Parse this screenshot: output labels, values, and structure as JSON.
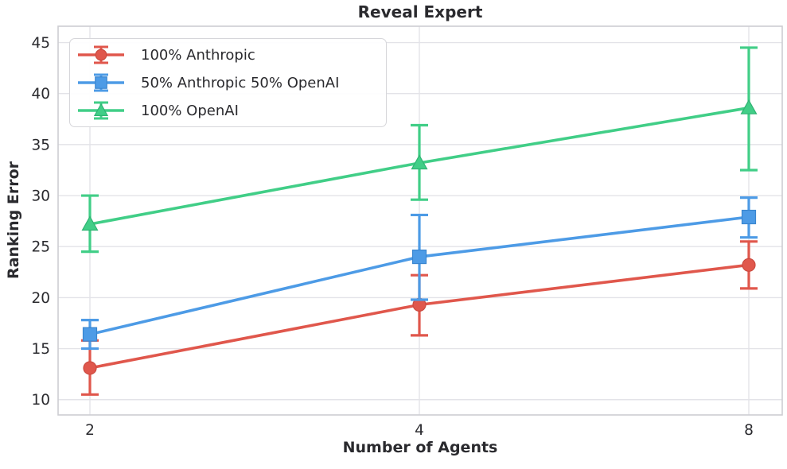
{
  "chart_data": {
    "type": "line",
    "title": "Reveal Expert",
    "xlabel": "Number of Agents",
    "ylabel": "Ranking Error",
    "x": [
      2,
      4,
      8
    ],
    "x_scale": "log2",
    "x_tick_labels": [
      "2",
      "4",
      "8"
    ],
    "y_ticks": [
      10,
      15,
      20,
      25,
      30,
      35,
      40,
      45
    ],
    "ylim": [
      8.5,
      46.6
    ],
    "grid": true,
    "legend_position": "upper-left",
    "series": [
      {
        "name": "100% Anthropic",
        "marker": "circle",
        "color": "#e0574c",
        "edge": "#cb4a3f",
        "values": [
          13.1,
          19.3,
          23.2
        ],
        "err_low": [
          10.5,
          16.3,
          20.9
        ],
        "err_high": [
          15.8,
          22.2,
          25.5
        ]
      },
      {
        "name": "50% Anthropic 50% OpenAI",
        "marker": "square",
        "color": "#4d9be6",
        "edge": "#3a86cf",
        "values": [
          16.4,
          24.0,
          27.9
        ],
        "err_low": [
          15.0,
          19.8,
          25.9
        ],
        "err_high": [
          17.8,
          28.1,
          29.8
        ]
      },
      {
        "name": "100% OpenAI",
        "marker": "triangle",
        "color": "#41ce87",
        "edge": "#2fb473",
        "values": [
          27.2,
          33.2,
          38.6
        ],
        "err_low": [
          24.5,
          29.6,
          32.5
        ],
        "err_high": [
          30.0,
          36.9,
          44.5
        ]
      }
    ],
    "colors": {
      "background": "#ffffff",
      "grid": "#e3e3e8",
      "spine": "#cdcdd2",
      "text": "#2a2a2e",
      "legend_border": "#d6d6da"
    }
  }
}
